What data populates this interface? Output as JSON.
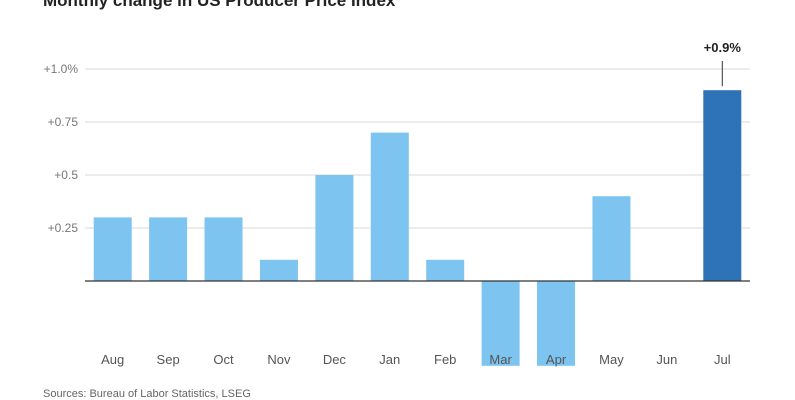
{
  "chart_data": {
    "type": "bar",
    "title": "Monthly change in US Producer Price Index",
    "source": "Sources: Bureau of Labor Statistics, LSEG",
    "categories": [
      "Aug",
      "Sep",
      "Oct",
      "Nov",
      "Dec",
      "Jan",
      "Feb",
      "Mar",
      "Apr",
      "May",
      "Jun",
      "Jul"
    ],
    "values": [
      0.3,
      0.3,
      0.3,
      0.1,
      0.5,
      0.7,
      0.1,
      -0.4,
      -0.4,
      0.4,
      0.0,
      0.9
    ],
    "yticks": [
      {
        "value": 1.0,
        "label": "+1.0%"
      },
      {
        "value": 0.75,
        "label": "+0.75"
      },
      {
        "value": 0.5,
        "label": "+0.5"
      },
      {
        "value": 0.25,
        "label": "+0.25"
      }
    ],
    "ylim": [
      -0.55,
      1.0
    ],
    "annotation": {
      "category": "Jul",
      "text": "+0.9%"
    },
    "grid": true,
    "colors": {
      "bar": "#7dc4f0",
      "highlight": "#2e73b7",
      "grid": "#d9d9d9",
      "baseline": "#333333"
    }
  }
}
